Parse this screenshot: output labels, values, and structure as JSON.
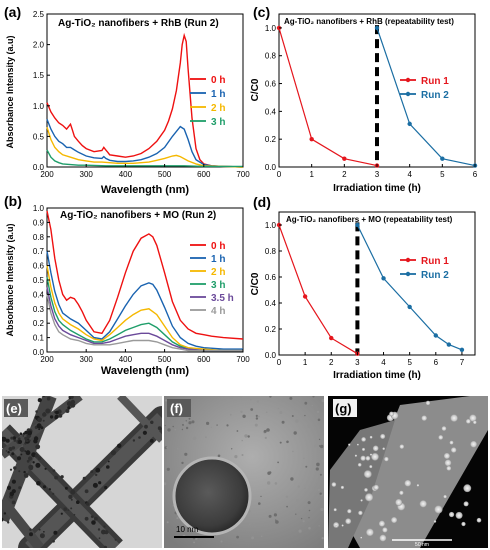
{
  "panels": [
    {
      "id": "a"
    },
    {
      "id": "b"
    },
    {
      "id": "c"
    },
    {
      "id": "d"
    },
    {
      "id": "e"
    },
    {
      "id": "f"
    },
    {
      "id": "g"
    }
  ],
  "colors": {
    "red": "#ee1111",
    "blue": "#1a63b0",
    "yellow": "#f5b800",
    "green": "#1f9e6a",
    "purple": "#6b4a9a",
    "grey": "#9a9a9a",
    "run1": "#e5161d",
    "run2": "#1b6ea3"
  },
  "chart_data": [
    {
      "id": "a",
      "label": "(a)",
      "type": "line",
      "title": "Ag-TiO₂ nanofibers + RhB (Run 2)",
      "xlabel": "Wavelength (nm)",
      "ylabel": "Absorbance Intensity (a.u)",
      "xlim": [
        200,
        700
      ],
      "ylim": [
        0,
        2.5
      ],
      "xticks": [
        200,
        300,
        400,
        500,
        600,
        700
      ],
      "yticks": [
        0.0,
        0.5,
        1.0,
        1.5,
        2.0,
        2.5
      ],
      "legend_position": "right",
      "series": [
        {
          "name": "0 h",
          "color": "#ee1111",
          "x": [
            200,
            210,
            220,
            230,
            240,
            250,
            255,
            260,
            265,
            270,
            280,
            290,
            300,
            320,
            340,
            345,
            350,
            355,
            360,
            380,
            400,
            420,
            440,
            460,
            480,
            500,
            510,
            520,
            530,
            540,
            545,
            550,
            555,
            560,
            570,
            580,
            590,
            600,
            620,
            650,
            700
          ],
          "y": [
            1.05,
            0.9,
            0.8,
            0.72,
            0.68,
            0.62,
            0.66,
            0.7,
            0.6,
            0.5,
            0.42,
            0.35,
            0.3,
            0.25,
            0.27,
            0.32,
            0.28,
            0.24,
            0.2,
            0.18,
            0.16,
            0.18,
            0.22,
            0.3,
            0.42,
            0.6,
            0.75,
            0.95,
            1.25,
            1.7,
            2.0,
            2.15,
            2.05,
            1.6,
            0.8,
            0.3,
            0.12,
            0.05,
            0.02,
            0.01,
            0.0
          ]
        },
        {
          "name": "1 h",
          "color": "#1a63b0",
          "x": [
            200,
            210,
            220,
            230,
            240,
            250,
            260,
            270,
            280,
            300,
            320,
            340,
            345,
            350,
            360,
            380,
            400,
            420,
            440,
            460,
            480,
            500,
            520,
            540,
            550,
            560,
            570,
            580,
            600,
            620,
            650,
            700
          ],
          "y": [
            0.78,
            0.62,
            0.5,
            0.42,
            0.38,
            0.32,
            0.32,
            0.28,
            0.24,
            0.18,
            0.15,
            0.14,
            0.17,
            0.14,
            0.11,
            0.09,
            0.09,
            0.1,
            0.12,
            0.16,
            0.22,
            0.32,
            0.5,
            0.66,
            0.62,
            0.45,
            0.25,
            0.12,
            0.04,
            0.02,
            0.01,
            0.0
          ]
        },
        {
          "name": "2 h",
          "color": "#f5b800",
          "x": [
            200,
            210,
            220,
            230,
            240,
            260,
            280,
            300,
            320,
            340,
            360,
            380,
            400,
            420,
            440,
            460,
            480,
            500,
            520,
            530,
            540,
            560,
            580,
            600,
            650,
            700
          ],
          "y": [
            0.65,
            0.45,
            0.32,
            0.25,
            0.2,
            0.16,
            0.12,
            0.1,
            0.08,
            0.08,
            0.07,
            0.06,
            0.06,
            0.06,
            0.07,
            0.08,
            0.11,
            0.14,
            0.18,
            0.19,
            0.17,
            0.1,
            0.05,
            0.02,
            0.01,
            0.0
          ]
        },
        {
          "name": "3 h",
          "color": "#1f9e6a",
          "x": [
            200,
            210,
            220,
            230,
            240,
            260,
            280,
            300,
            350,
            400,
            450,
            500,
            550,
            600,
            650,
            700
          ],
          "y": [
            0.28,
            0.16,
            0.1,
            0.07,
            0.05,
            0.04,
            0.03,
            0.03,
            0.02,
            0.02,
            0.02,
            0.02,
            0.02,
            0.01,
            0.01,
            0.01
          ]
        }
      ]
    },
    {
      "id": "b",
      "label": "(b)",
      "type": "line",
      "title": "Ag-TiO₂ nanofibers + MO (Run 2)",
      "xlabel": "Wavelength (nm)",
      "ylabel": "Absorbance Intensity (a.u)",
      "xlim": [
        200,
        700
      ],
      "ylim": [
        0,
        1.0
      ],
      "xticks": [
        200,
        300,
        400,
        500,
        600,
        700
      ],
      "yticks": [
        0.0,
        0.1,
        0.2,
        0.3,
        0.4,
        0.5,
        0.6,
        0.7,
        0.8,
        0.9,
        1.0
      ],
      "legend_position": "right",
      "series": [
        {
          "name": "0 h",
          "color": "#ee1111",
          "x": [
            200,
            210,
            220,
            230,
            240,
            250,
            260,
            270,
            280,
            290,
            300,
            320,
            340,
            360,
            380,
            400,
            420,
            440,
            460,
            470,
            480,
            500,
            520,
            540,
            560,
            580,
            600,
            620,
            650,
            700
          ],
          "y": [
            0.98,
            0.85,
            0.65,
            0.5,
            0.4,
            0.36,
            0.38,
            0.37,
            0.33,
            0.28,
            0.22,
            0.14,
            0.13,
            0.22,
            0.38,
            0.55,
            0.7,
            0.79,
            0.82,
            0.8,
            0.74,
            0.55,
            0.35,
            0.22,
            0.16,
            0.13,
            0.12,
            0.11,
            0.1,
            0.09
          ]
        },
        {
          "name": "1 h",
          "color": "#1a63b0",
          "x": [
            200,
            210,
            220,
            230,
            240,
            260,
            280,
            300,
            320,
            340,
            360,
            380,
            400,
            420,
            440,
            460,
            470,
            480,
            500,
            520,
            540,
            560,
            580,
            600,
            650,
            700
          ],
          "y": [
            0.7,
            0.55,
            0.42,
            0.33,
            0.27,
            0.23,
            0.2,
            0.15,
            0.1,
            0.09,
            0.14,
            0.23,
            0.32,
            0.4,
            0.46,
            0.48,
            0.47,
            0.43,
            0.31,
            0.18,
            0.1,
            0.06,
            0.04,
            0.03,
            0.02,
            0.02
          ]
        },
        {
          "name": "2 h",
          "color": "#f5b800",
          "x": [
            200,
            210,
            220,
            230,
            240,
            260,
            280,
            300,
            320,
            340,
            360,
            380,
            400,
            420,
            440,
            460,
            480,
            500,
            520,
            540,
            560,
            600,
            650,
            700
          ],
          "y": [
            0.6,
            0.45,
            0.34,
            0.27,
            0.23,
            0.19,
            0.16,
            0.12,
            0.09,
            0.08,
            0.12,
            0.17,
            0.22,
            0.26,
            0.29,
            0.3,
            0.26,
            0.18,
            0.1,
            0.05,
            0.03,
            0.02,
            0.01,
            0.01
          ]
        },
        {
          "name": "3 h",
          "color": "#1f9e6a",
          "x": [
            200,
            210,
            220,
            230,
            240,
            260,
            280,
            300,
            320,
            340,
            360,
            380,
            400,
            420,
            440,
            460,
            480,
            500,
            520,
            540,
            560,
            600,
            650,
            700
          ],
          "y": [
            0.52,
            0.38,
            0.28,
            0.22,
            0.19,
            0.15,
            0.12,
            0.09,
            0.07,
            0.07,
            0.09,
            0.12,
            0.15,
            0.17,
            0.19,
            0.2,
            0.17,
            0.12,
            0.07,
            0.04,
            0.02,
            0.01,
            0.01,
            0.01
          ]
        },
        {
          "name": "3.5 h",
          "color": "#6b4a9a",
          "x": [
            200,
            210,
            220,
            230,
            240,
            260,
            280,
            300,
            320,
            340,
            360,
            380,
            400,
            420,
            440,
            460,
            480,
            500,
            520,
            540,
            560,
            600,
            650,
            700
          ],
          "y": [
            0.45,
            0.32,
            0.23,
            0.18,
            0.15,
            0.12,
            0.1,
            0.08,
            0.06,
            0.06,
            0.07,
            0.09,
            0.11,
            0.12,
            0.13,
            0.13,
            0.11,
            0.08,
            0.05,
            0.03,
            0.02,
            0.01,
            0.01,
            0.01
          ]
        },
        {
          "name": "4 h",
          "color": "#9a9a9a",
          "x": [
            200,
            210,
            220,
            230,
            240,
            260,
            280,
            300,
            320,
            340,
            360,
            380,
            400,
            420,
            440,
            460,
            480,
            500,
            520,
            540,
            560,
            600,
            650,
            700
          ],
          "y": [
            0.4,
            0.27,
            0.19,
            0.14,
            0.12,
            0.09,
            0.08,
            0.06,
            0.05,
            0.05,
            0.05,
            0.06,
            0.07,
            0.08,
            0.08,
            0.08,
            0.07,
            0.05,
            0.03,
            0.02,
            0.01,
            0.01,
            0.01,
            0.01
          ]
        }
      ]
    },
    {
      "id": "c",
      "label": "(c)",
      "type": "line",
      "title": "Ag-TiO₂ nanofibers + RhB (repeatability test)",
      "xlabel": "Irradiation time (h)",
      "ylabel": "C/C0",
      "xlim": [
        0,
        6
      ],
      "ylim": [
        0,
        1.1
      ],
      "xticks": [
        0,
        1,
        2,
        3,
        4,
        5,
        6
      ],
      "yticks": [
        0.0,
        0.2,
        0.4,
        0.6,
        0.8,
        1.0
      ],
      "divider_x": 3,
      "legend_position": "right",
      "series": [
        {
          "name": "Run 1",
          "color": "#e5161d",
          "x": [
            0,
            1,
            2,
            3
          ],
          "y": [
            1.0,
            0.2,
            0.06,
            0.01
          ]
        },
        {
          "name": "Run 2",
          "color": "#1b6ea3",
          "x": [
            3,
            4,
            5,
            6
          ],
          "y": [
            1.0,
            0.31,
            0.06,
            0.01
          ]
        }
      ]
    },
    {
      "id": "d",
      "label": "(d)",
      "type": "line",
      "title": "Ag-TiO₂ nanofibers + MO (repeatability test)",
      "xlabel": "Irradiation time (h)",
      "ylabel": "C/C0",
      "xlim": [
        0,
        7.5
      ],
      "ylim": [
        0,
        1.1
      ],
      "xticks": [
        0,
        1,
        2,
        3,
        4,
        5,
        6,
        7
      ],
      "yticks": [
        0.0,
        0.2,
        0.4,
        0.6,
        0.8,
        1.0
      ],
      "divider_x": 3,
      "legend_position": "right",
      "series": [
        {
          "name": "Run 1",
          "color": "#e5161d",
          "x": [
            0,
            1,
            2,
            3
          ],
          "y": [
            1.0,
            0.45,
            0.13,
            0.01
          ]
        },
        {
          "name": "Run 2",
          "color": "#1b6ea3",
          "x": [
            3,
            4,
            5,
            6,
            6.5,
            7
          ],
          "y": [
            1.0,
            0.59,
            0.37,
            0.15,
            0.08,
            0.04
          ]
        }
      ]
    }
  ],
  "micrographs": [
    {
      "id": "e",
      "label": "(e)"
    },
    {
      "id": "f",
      "label": "(f)",
      "scale_bar_text": "10 nm"
    },
    {
      "id": "g",
      "label": "(g)",
      "scale_bar_text": "50 nm"
    }
  ]
}
